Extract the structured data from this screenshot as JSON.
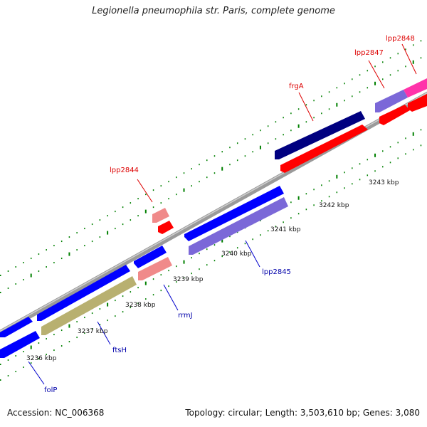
{
  "title": "Legionella pneumophila str. Paris, complete genome",
  "footer": {
    "accession": "Accession: NC_006368",
    "summary": "Topology: circular; Length: 3,503,610 bp; Genes: 3,080"
  },
  "colors": {
    "forward_gene": "#0000ff",
    "forward_cds": "#7b68d8",
    "reverse_gene": "#ff0000",
    "reverse_cds": "#f08a8a",
    "olive_cds": "#b8b070",
    "dark_gene": "#000080",
    "magenta_gene": "#ff33aa",
    "tick_green": "#008000",
    "backbone": "#9a9a9a"
  },
  "scale_labels": [
    "3236 kbp",
    "3237 kbp",
    "3238 kbp",
    "3239 kbp",
    "3240 kbp",
    "3241 kbp",
    "3242 kbp",
    "3243 kbp"
  ],
  "gene_labels": [
    {
      "text": "folP",
      "color": "#0000aa"
    },
    {
      "text": "ftsH",
      "color": "#0000aa"
    },
    {
      "text": "rrmJ",
      "color": "#0000aa"
    },
    {
      "text": "lpp2845",
      "color": "#0000aa"
    },
    {
      "text": "lpp2844",
      "color": "#dd0000"
    },
    {
      "text": "frgA",
      "color": "#dd0000"
    },
    {
      "text": "lpp2847",
      "color": "#dd0000"
    },
    {
      "text": "lpp2848",
      "color": "#dd0000"
    }
  ]
}
